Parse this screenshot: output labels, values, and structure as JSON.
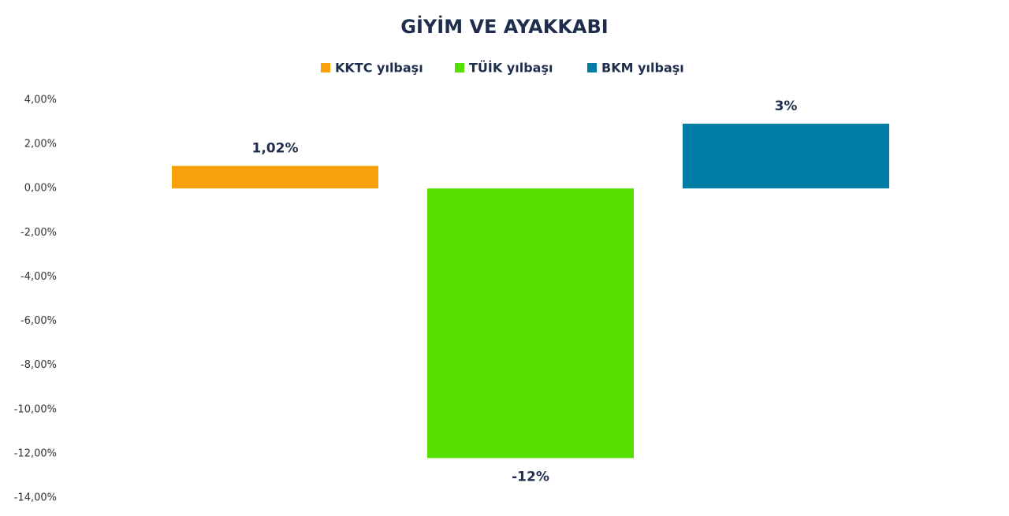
{
  "chart_data": {
    "type": "bar",
    "title": "GİYİM VE AYAKKABI",
    "categories": [
      null
    ],
    "series": [
      {
        "name": "KKTC yılbaşı",
        "color": "#f9a10a",
        "values": [
          1.02
        ],
        "value_labels": [
          "1,02%"
        ]
      },
      {
        "name": "TÜİK yılbaşı",
        "color": "#55e000",
        "values": [
          -12.2
        ],
        "value_labels": [
          "-12%"
        ]
      },
      {
        "name": "BKM yılbaşı",
        "color": "#017ca5",
        "values": [
          2.93
        ],
        "value_labels": [
          "3%"
        ]
      }
    ],
    "ylim": [
      -14,
      4
    ],
    "yticks": [
      {
        "value": 4,
        "label": "4,00%"
      },
      {
        "value": 2,
        "label": "2,00%"
      },
      {
        "value": 0,
        "label": "0,00%"
      },
      {
        "value": -2,
        "label": "-2,00%"
      },
      {
        "value": -4,
        "label": "-4,00%"
      },
      {
        "value": -6,
        "label": "-6,00%"
      },
      {
        "value": -8,
        "label": "-8,00%"
      },
      {
        "value": -10,
        "label": "-10,00%"
      },
      {
        "value": -12,
        "label": "-12,00%"
      },
      {
        "value": -14,
        "label": "-14,00%"
      }
    ],
    "grid": false,
    "legend": "top"
  }
}
